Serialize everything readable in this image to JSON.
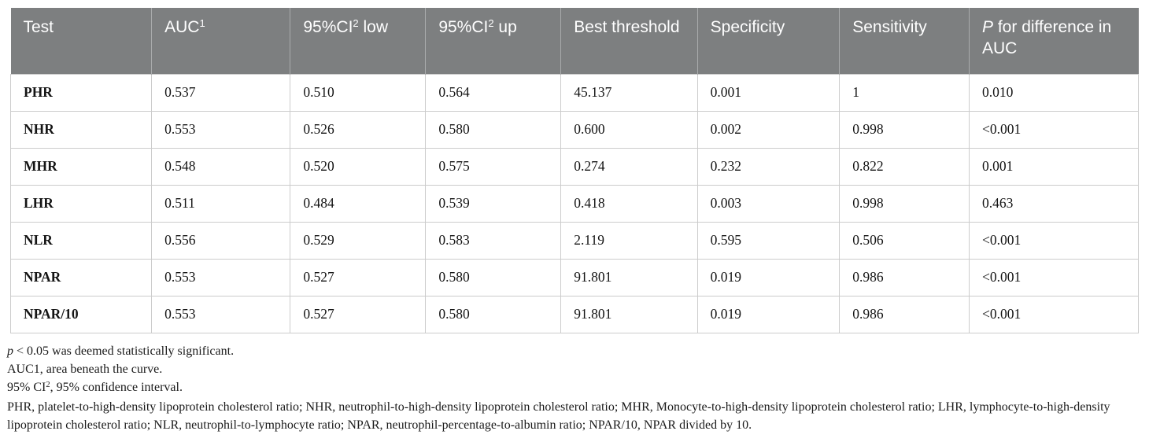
{
  "colors": {
    "header_bg": "#7d7f80",
    "header_text": "#ffffff",
    "header_divider": "#a9abac",
    "body_border": "#cccccc",
    "body_text": "#141414",
    "footnote_text": "#1a1a1a",
    "page_bg": "#ffffff"
  },
  "table": {
    "columns": [
      {
        "key": "test",
        "parts": [
          {
            "text": "Test",
            "style": "normal"
          }
        ]
      },
      {
        "key": "auc",
        "parts": [
          {
            "text": "AUC",
            "style": "normal"
          },
          {
            "text": "1",
            "style": "sup"
          }
        ]
      },
      {
        "key": "ci_low",
        "parts": [
          {
            "text": "95%CI",
            "style": "normal"
          },
          {
            "text": "2",
            "style": "sup"
          },
          {
            "text": " low",
            "style": "normal"
          }
        ]
      },
      {
        "key": "ci_up",
        "parts": [
          {
            "text": "95%CI",
            "style": "normal"
          },
          {
            "text": "2",
            "style": "sup"
          },
          {
            "text": " up",
            "style": "normal"
          }
        ]
      },
      {
        "key": "best_threshold",
        "parts": [
          {
            "text": "Best threshold",
            "style": "normal"
          }
        ]
      },
      {
        "key": "specificity",
        "parts": [
          {
            "text": "Specificity",
            "style": "normal"
          }
        ]
      },
      {
        "key": "sensitivity",
        "parts": [
          {
            "text": "Sensitivity",
            "style": "normal"
          }
        ]
      },
      {
        "key": "p_for_difference",
        "parts": [
          {
            "text": "P",
            "style": "italic"
          },
          {
            "text": " for difference in AUC",
            "style": "normal"
          }
        ]
      }
    ],
    "rows": [
      {
        "cells": [
          "PHR",
          "0.537",
          "0.510",
          "0.564",
          "45.137",
          "0.001",
          "1",
          "0.010"
        ]
      },
      {
        "cells": [
          "NHR",
          "0.553",
          "0.526",
          "0.580",
          "0.600",
          "0.002",
          "0.998",
          "<0.001"
        ]
      },
      {
        "cells": [
          "MHR",
          "0.548",
          "0.520",
          "0.575",
          "0.274",
          "0.232",
          "0.822",
          "0.001"
        ]
      },
      {
        "cells": [
          "LHR",
          "0.511",
          "0.484",
          "0.539",
          "0.418",
          "0.003",
          "0.998",
          "0.463"
        ]
      },
      {
        "cells": [
          "NLR",
          "0.556",
          "0.529",
          "0.583",
          "2.119",
          "0.595",
          "0.506",
          "<0.001"
        ]
      },
      {
        "cells": [
          "NPAR",
          "0.553",
          "0.527",
          "0.580",
          "91.801",
          "0.019",
          "0.986",
          "<0.001"
        ]
      },
      {
        "cells": [
          "NPAR/10",
          "0.553",
          "0.527",
          "0.580",
          "91.801",
          "0.019",
          "0.986",
          "<0.001"
        ]
      }
    ]
  },
  "footnotes": [
    {
      "parts": [
        {
          "text": "p",
          "style": "italic"
        },
        {
          "text": " < 0.05 was deemed statistically significant.",
          "style": "normal"
        }
      ]
    },
    {
      "parts": [
        {
          "text": "AUC1, area beneath the curve.",
          "style": "normal"
        }
      ]
    },
    {
      "parts": [
        {
          "text": "95% CI",
          "style": "normal"
        },
        {
          "text": "2",
          "style": "sup"
        },
        {
          "text": ", 95% confidence interval.",
          "style": "normal"
        }
      ]
    },
    {
      "parts": [
        {
          "text": "PHR, platelet-to-high-density lipoprotein cholesterol ratio; NHR, neutrophil-to-high-density lipoprotein cholesterol ratio; MHR, Monocyte-to-high-density lipoprotein cholesterol ratio; LHR, lymphocyte-to-high-density lipoprotein cholesterol ratio; NLR, neutrophil-to-lymphocyte ratio; NPAR, neutrophil-percentage-to-albumin ratio; NPAR/10, NPAR divided by 10.",
          "style": "normal"
        }
      ]
    }
  ]
}
